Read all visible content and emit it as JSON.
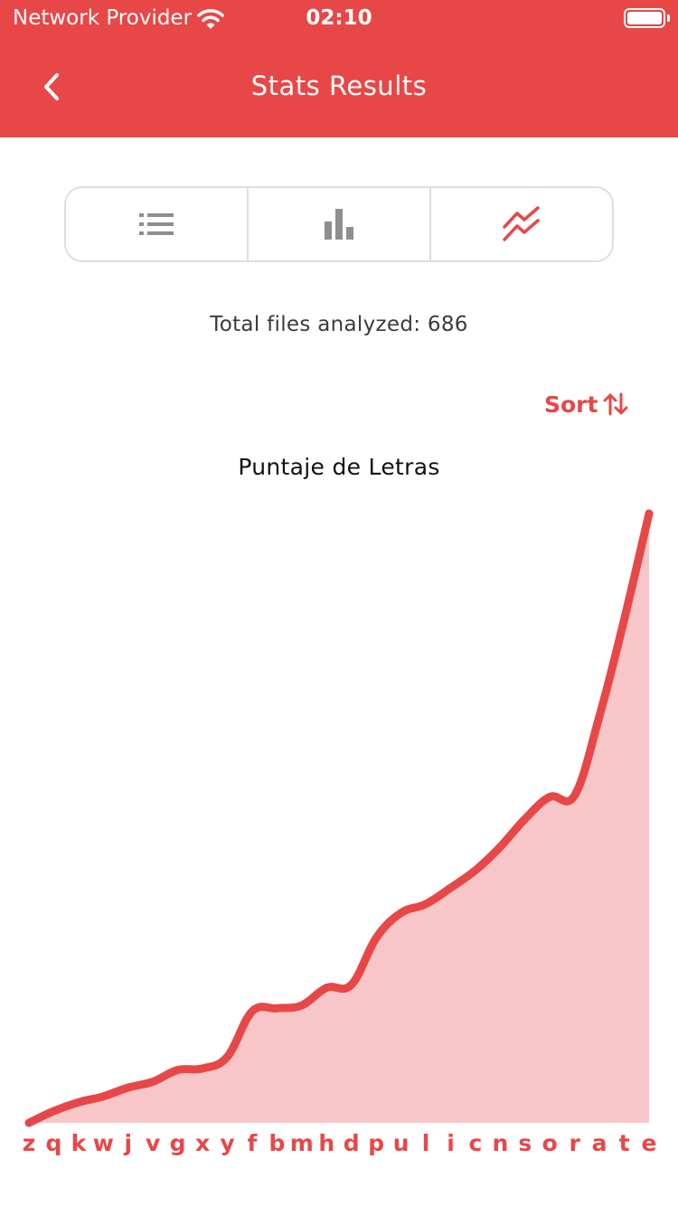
{
  "status_bar": {
    "carrier": "Network Provider",
    "time": "02:10"
  },
  "header": {
    "title": "Stats Results"
  },
  "view_switcher": {
    "options": [
      {
        "icon": "list-icon",
        "selected": false
      },
      {
        "icon": "bar-chart-icon",
        "selected": false
      },
      {
        "icon": "line-chart-icon",
        "selected": true
      }
    ]
  },
  "summary": {
    "total_files": "Total files analyzed: 686"
  },
  "sort": {
    "label": "Sort"
  },
  "colors": {
    "accent": "#e84747",
    "fill": "#f8c6c8",
    "icon_gray": "#8e8e8e"
  },
  "chart_data": {
    "type": "area",
    "title": "Puntaje de Letras",
    "categories": [
      "z",
      "q",
      "k",
      "w",
      "j",
      "v",
      "g",
      "x",
      "y",
      "f",
      "b",
      "m",
      "h",
      "d",
      "p",
      "u",
      "l",
      "i",
      "c",
      "n",
      "s",
      "o",
      "r",
      "a",
      "t",
      "e"
    ],
    "values": [
      0,
      8,
      14,
      18,
      24,
      28,
      36,
      37,
      45,
      76,
      78,
      80,
      92,
      94,
      126,
      143,
      149,
      160,
      172,
      188,
      207,
      222,
      223,
      277,
      343,
      415
    ],
    "ylim": [
      0,
      415
    ],
    "grid": false,
    "legend": "none"
  }
}
